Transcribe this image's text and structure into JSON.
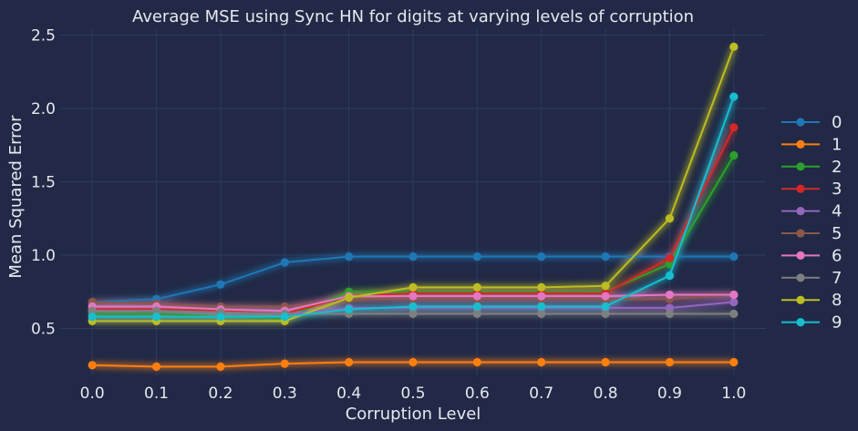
{
  "chart_data": {
    "type": "line",
    "title": "Average MSE using Sync HN for digits at varying levels of corruption",
    "xlabel": "Corruption Level",
    "ylabel": "Mean Squared Error",
    "x": [
      0.0,
      0.1,
      0.2,
      0.3,
      0.4,
      0.5,
      0.6,
      0.7,
      0.8,
      0.9,
      1.0
    ],
    "x_tick_labels": [
      "0.0",
      "0.1",
      "0.2",
      "0.3",
      "0.4",
      "0.5",
      "0.6",
      "0.7",
      "0.8",
      "0.9",
      "1.0"
    ],
    "y_ticks": [
      0.5,
      1.0,
      1.5,
      2.0,
      2.5
    ],
    "y_tick_labels": [
      "0.5",
      "1.0",
      "1.5",
      "2.0",
      "2.5"
    ],
    "xlim": [
      -0.05,
      1.05
    ],
    "ylim": [
      0.18,
      2.54
    ],
    "grid": true,
    "legend_position": "right",
    "series": [
      {
        "name": "0",
        "color": "#1f77b4",
        "values": [
          0.68,
          0.7,
          0.8,
          0.95,
          0.99,
          0.99,
          0.99,
          0.99,
          0.99,
          0.99,
          0.99
        ]
      },
      {
        "name": "1",
        "color": "#ff7f0e",
        "values": [
          0.25,
          0.24,
          0.24,
          0.26,
          0.27,
          0.27,
          0.27,
          0.27,
          0.27,
          0.27,
          0.27
        ]
      },
      {
        "name": "2",
        "color": "#2ca02c",
        "values": [
          0.6,
          0.6,
          0.58,
          0.57,
          0.75,
          0.75,
          0.75,
          0.75,
          0.75,
          0.94,
          1.68
        ]
      },
      {
        "name": "3",
        "color": "#d62728",
        "values": [
          0.63,
          0.63,
          0.62,
          0.6,
          0.72,
          0.74,
          0.74,
          0.74,
          0.74,
          0.98,
          1.87
        ]
      },
      {
        "name": "4",
        "color": "#9467bd",
        "values": [
          0.62,
          0.62,
          0.61,
          0.6,
          0.64,
          0.64,
          0.64,
          0.64,
          0.64,
          0.64,
          0.68
        ]
      },
      {
        "name": "5",
        "color": "#8c564b",
        "values": [
          0.68,
          0.67,
          0.65,
          0.65,
          0.7,
          0.7,
          0.7,
          0.7,
          0.7,
          0.7,
          0.73
        ]
      },
      {
        "name": "6",
        "color": "#e377c2",
        "values": [
          0.65,
          0.65,
          0.63,
          0.62,
          0.72,
          0.72,
          0.72,
          0.72,
          0.72,
          0.73,
          0.73
        ]
      },
      {
        "name": "7",
        "color": "#7f7f7f",
        "values": [
          0.62,
          0.62,
          0.61,
          0.6,
          0.6,
          0.6,
          0.6,
          0.6,
          0.6,
          0.6,
          0.6
        ]
      },
      {
        "name": "8",
        "color": "#bcbd22",
        "values": [
          0.55,
          0.55,
          0.55,
          0.55,
          0.71,
          0.78,
          0.78,
          0.78,
          0.79,
          1.25,
          2.42
        ]
      },
      {
        "name": "9",
        "color": "#17becf",
        "values": [
          0.58,
          0.58,
          0.58,
          0.58,
          0.63,
          0.65,
          0.65,
          0.65,
          0.65,
          0.86,
          2.08
        ]
      }
    ]
  }
}
